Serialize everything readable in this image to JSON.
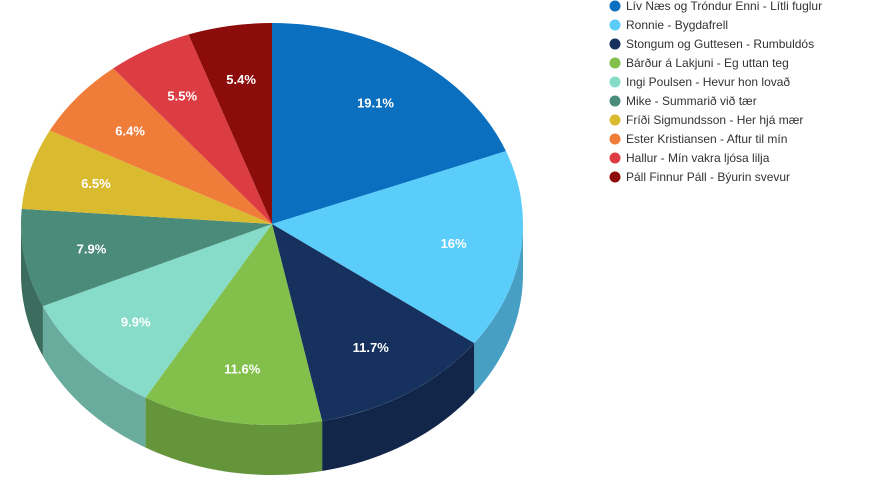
{
  "chart_data": {
    "type": "pie",
    "title": "",
    "three_d": true,
    "start_angle_deg": 0,
    "direction": "clockwise",
    "legend_position": "top-right",
    "slices": [
      {
        "label": "Lív Næs og Tróndur Enni - Lítli fuglur",
        "value": 19.1,
        "display": "19.1%",
        "color": "#0b6fbf"
      },
      {
        "label": "Ronnie - Bygdafrell",
        "value": 16,
        "display": "16%",
        "color": "#5bcdfb"
      },
      {
        "label": "Stongum og Guttesen - Rumbuldós",
        "value": 11.7,
        "display": "11.7%",
        "color": "#16315e"
      },
      {
        "label": "Bárður á Lakjuni - Eg uttan teg",
        "value": 11.6,
        "display": "11.6%",
        "color": "#82bf4b"
      },
      {
        "label": "Ingi Poulsen - Hevur hon lovað",
        "value": 9.9,
        "display": "9.9%",
        "color": "#87dbc9"
      },
      {
        "label": "Mike - Summarið við tær",
        "value": 7.9,
        "display": "7.9%",
        "color": "#4b8b79"
      },
      {
        "label": "Fríði Sigmundsson - Her hjá mær",
        "value": 6.5,
        "display": "6.5%",
        "color": "#dabb30"
      },
      {
        "label": "Ester Kristiansen - Aftur til mín",
        "value": 6.4,
        "display": "6.4%",
        "color": "#f07c3a"
      },
      {
        "label": "Hallur - Mín vakra ljósa lilja",
        "value": 5.5,
        "display": "5.5%",
        "color": "#dc3d42"
      },
      {
        "label": "Páll Finnur Páll - Býurin svevur",
        "value": 5.4,
        "display": "5.4%",
        "color": "#8c0c0b"
      }
    ]
  }
}
